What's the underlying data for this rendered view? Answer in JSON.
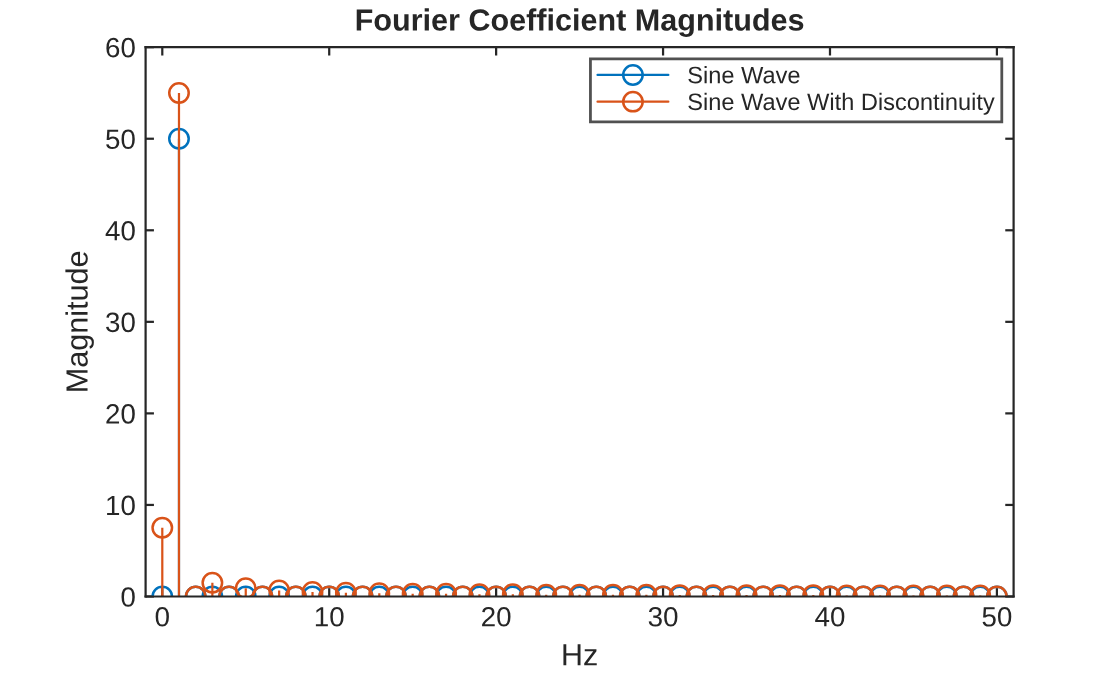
{
  "chart_data": {
    "type": "lollipop",
    "title": "Fourier Coefficient Magnitudes",
    "xlabel": "Hz",
    "ylabel": "Magnitude",
    "x": [
      0,
      1,
      2,
      3,
      4,
      5,
      6,
      7,
      8,
      9,
      10,
      11,
      12,
      13,
      14,
      15,
      16,
      17,
      18,
      19,
      20,
      21,
      22,
      23,
      24,
      25,
      26,
      27,
      28,
      29,
      30,
      31,
      32,
      33,
      34,
      35,
      36,
      37,
      38,
      39,
      40,
      41,
      42,
      43,
      44,
      45,
      46,
      47,
      48,
      49,
      50
    ],
    "series": [
      {
        "name": "Sine Wave",
        "color": "#0072bd",
        "values": [
          0,
          50,
          0,
          0,
          0,
          0,
          0,
          0,
          0,
          0,
          0,
          0,
          0,
          0,
          0,
          0,
          0,
          0,
          0,
          0,
          0,
          0,
          0,
          0,
          0,
          0,
          0,
          0,
          0,
          0,
          0,
          0,
          0,
          0,
          0,
          0,
          0,
          0,
          0,
          0,
          0,
          0,
          0,
          0,
          0,
          0,
          0,
          0,
          0,
          0,
          0
        ]
      },
      {
        "name": "Sine Wave With Discontinuity",
        "color": "#d95319",
        "values": [
          7.5,
          55,
          0,
          1.5,
          0,
          0.9,
          0,
          0.65,
          0,
          0.5,
          0,
          0.4,
          0,
          0.35,
          0,
          0.3,
          0,
          0.3,
          0,
          0.25,
          0,
          0.25,
          0,
          0.2,
          0,
          0.2,
          0,
          0.2,
          0,
          0.2,
          0,
          0.15,
          0,
          0.15,
          0,
          0.15,
          0,
          0.15,
          0,
          0.15,
          0,
          0.1,
          0,
          0.1,
          0,
          0.1,
          0,
          0.1,
          0,
          0.1,
          0
        ]
      }
    ],
    "xlim": [
      -1,
      51
    ],
    "xticks": [
      0,
      10,
      20,
      30,
      40,
      50
    ],
    "ylim": [
      0,
      60
    ],
    "yticks": [
      0,
      10,
      20,
      30,
      40,
      50,
      60
    ],
    "marker": "circle",
    "grid": false,
    "legend": "top right"
  }
}
